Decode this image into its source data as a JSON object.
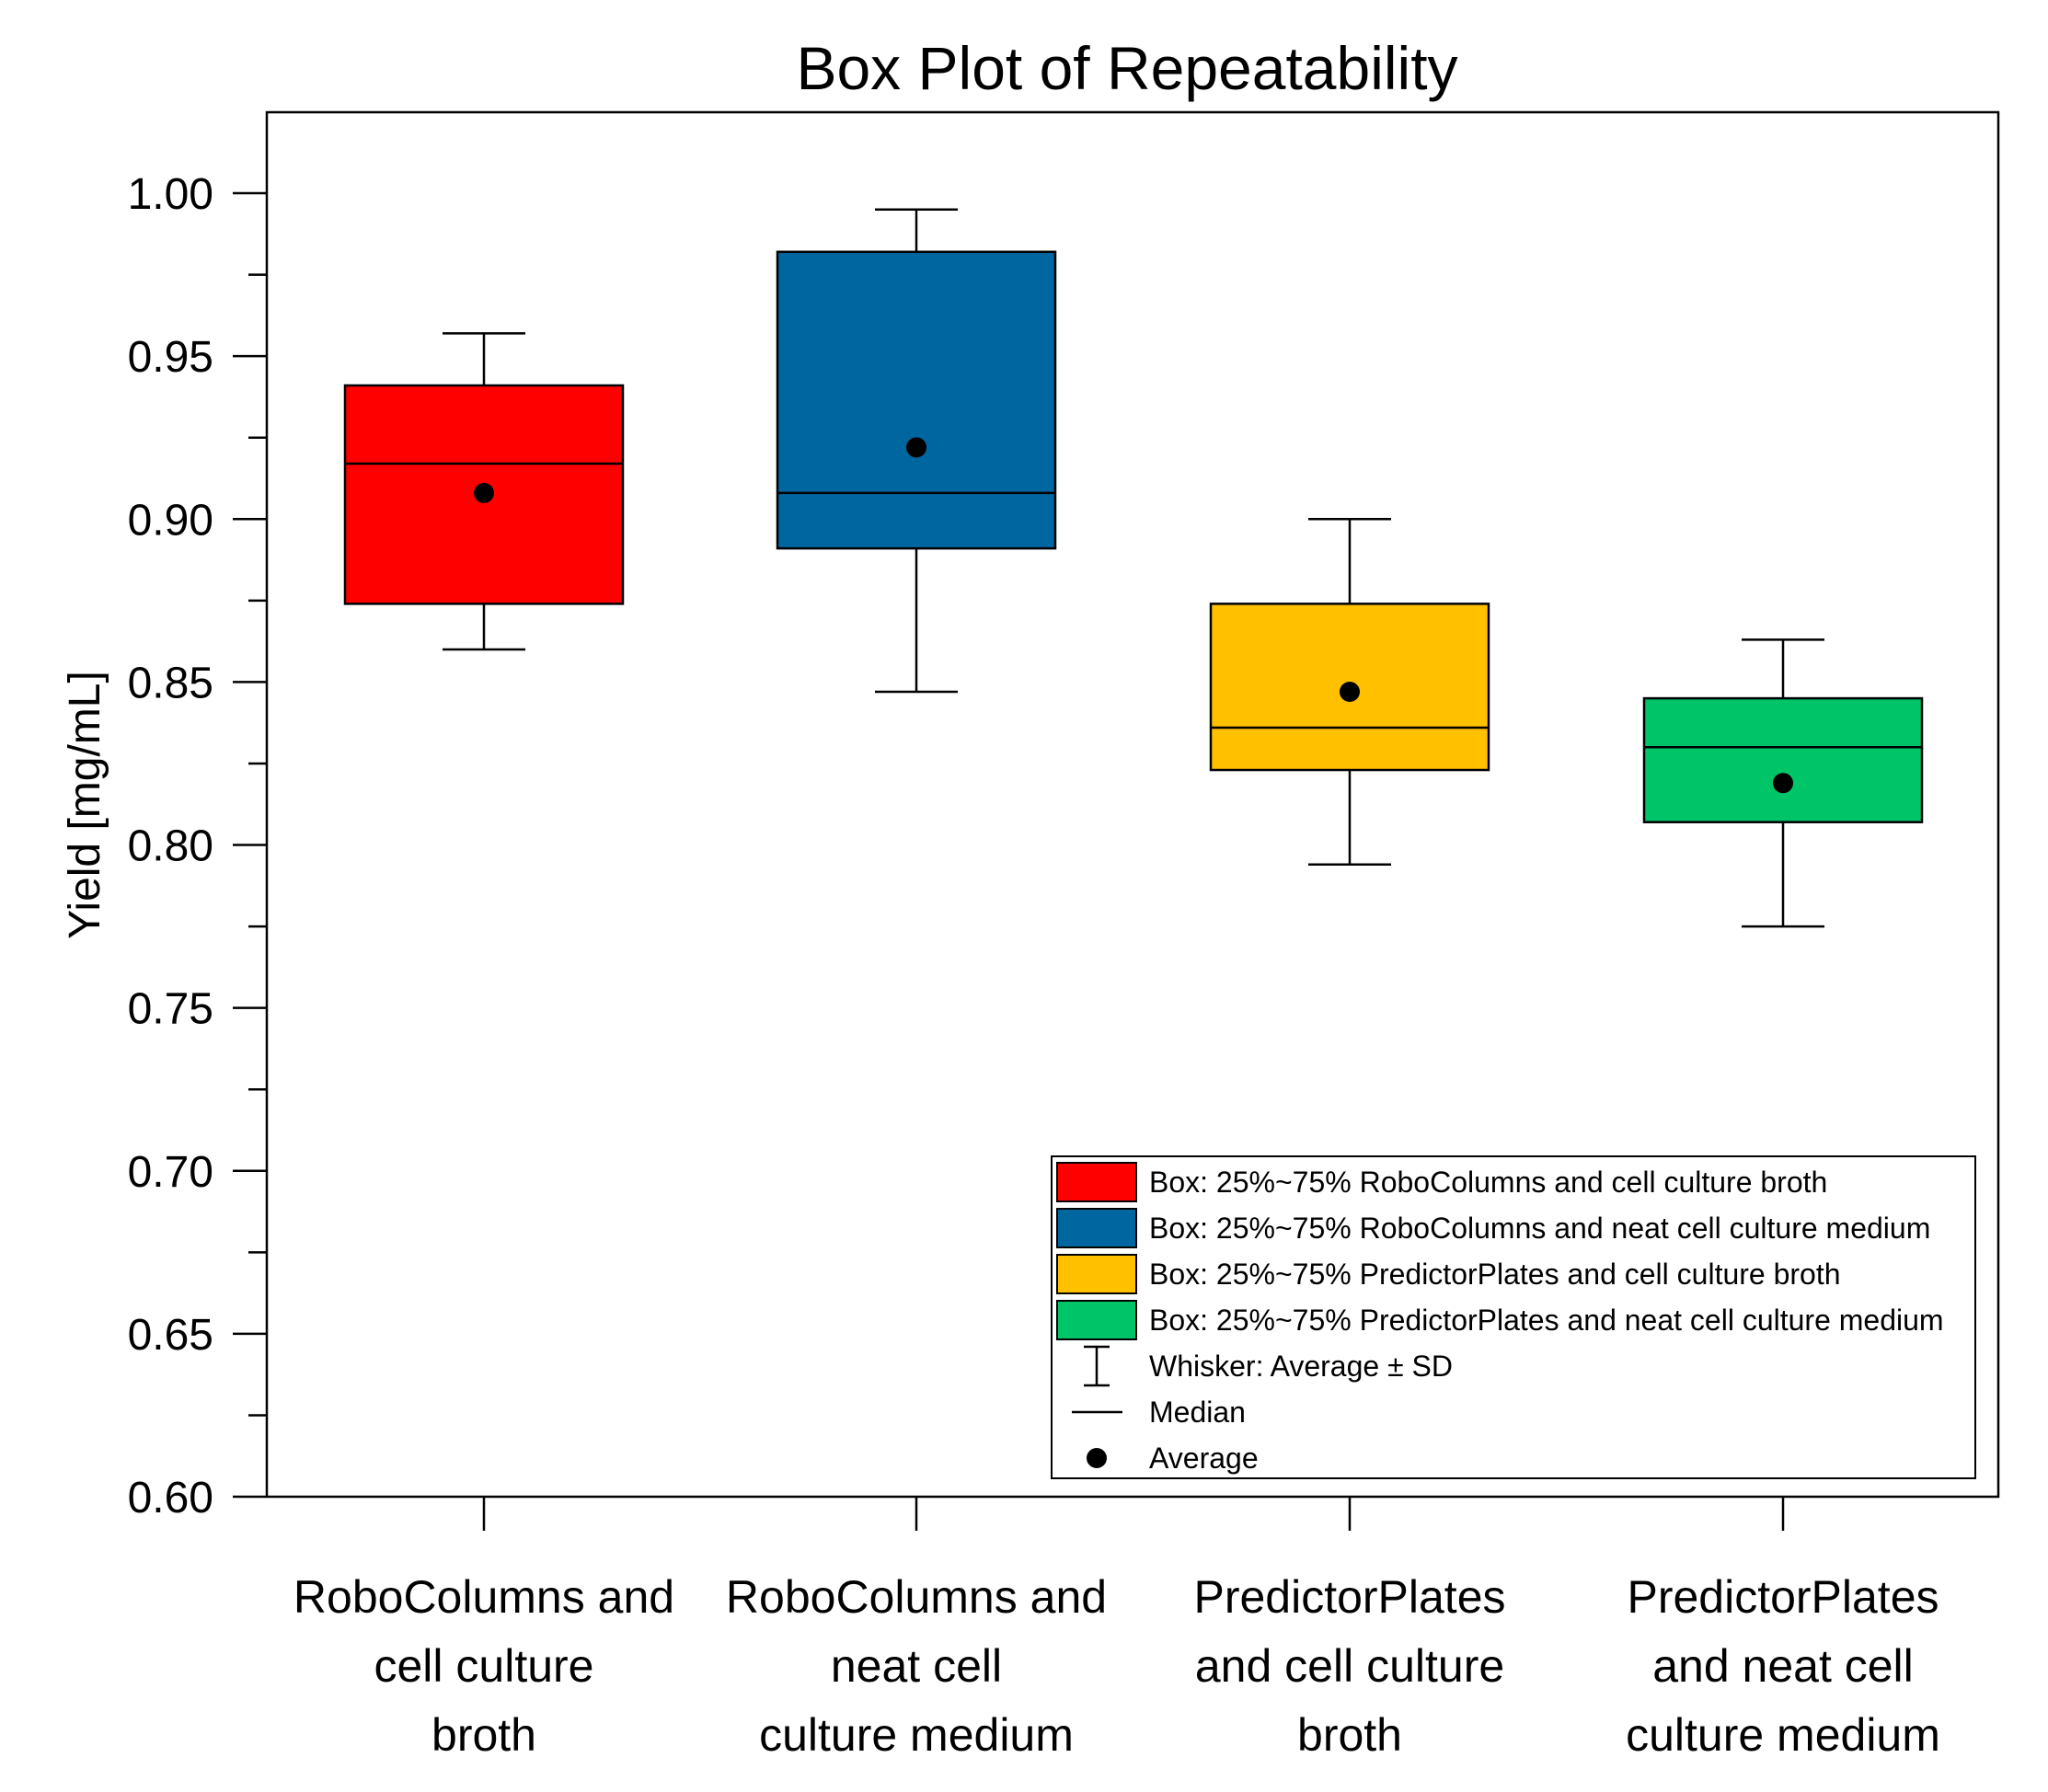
{
  "chart_data": {
    "type": "box",
    "title": "Box Plot of Repeatability",
    "xlabel": "",
    "ylabel": "Yield [mg/mL]",
    "ylim": [
      0.6,
      1.025
    ],
    "y_ticks": [
      "0.60",
      "0.65",
      "0.70",
      "0.75",
      "0.80",
      "0.85",
      "0.90",
      "0.95",
      "1.00"
    ],
    "categories": [
      [
        "RoboColumns and",
        "cell culture",
        "broth"
      ],
      [
        "RoboColumns and",
        "neat cell",
        "culture medium"
      ],
      [
        "PredictorPlates",
        "and cell culture",
        "broth"
      ],
      [
        "PredictorPlates",
        "and neat cell",
        "culture medium"
      ]
    ],
    "series": [
      {
        "name": "RoboColumns and cell culture broth",
        "color": "#FF0000",
        "q1": 0.874,
        "median": 0.917,
        "q3": 0.941,
        "whisker_low": 0.86,
        "whisker_high": 0.957,
        "average": 0.908
      },
      {
        "name": "RoboColumns and neat cell culture medium",
        "color": "#00669F",
        "q1": 0.891,
        "median": 0.908,
        "q3": 0.982,
        "whisker_low": 0.847,
        "whisker_high": 0.995,
        "average": 0.922
      },
      {
        "name": "PredictorPlates and cell culture broth",
        "color": "#FFC000",
        "q1": 0.823,
        "median": 0.836,
        "q3": 0.874,
        "whisker_low": 0.794,
        "whisker_high": 0.9,
        "average": 0.847
      },
      {
        "name": "PredictorPlates and neat cell culture medium",
        "color": "#00C468",
        "q1": 0.807,
        "median": 0.83,
        "q3": 0.845,
        "whisker_low": 0.775,
        "whisker_high": 0.863,
        "average": 0.819
      }
    ],
    "legend": {
      "position": "bottom-right",
      "entries": [
        {
          "kind": "box",
          "color": "#FF0000",
          "label": "Box: 25%~75% RoboColumns and cell culture broth"
        },
        {
          "kind": "box",
          "color": "#00669F",
          "label": "Box: 25%~75% RoboColumns and neat cell culture medium"
        },
        {
          "kind": "box",
          "color": "#FFC000",
          "label": "Box: 25%~75% PredictorPlates and cell culture broth"
        },
        {
          "kind": "box",
          "color": "#00C468",
          "label": "Box: 25%~75% PredictorPlates and neat cell culture medium"
        },
        {
          "kind": "whisker",
          "label": "Whisker: Average ± SD"
        },
        {
          "kind": "median",
          "label": "Median"
        },
        {
          "kind": "average",
          "label": "Average"
        }
      ]
    }
  }
}
